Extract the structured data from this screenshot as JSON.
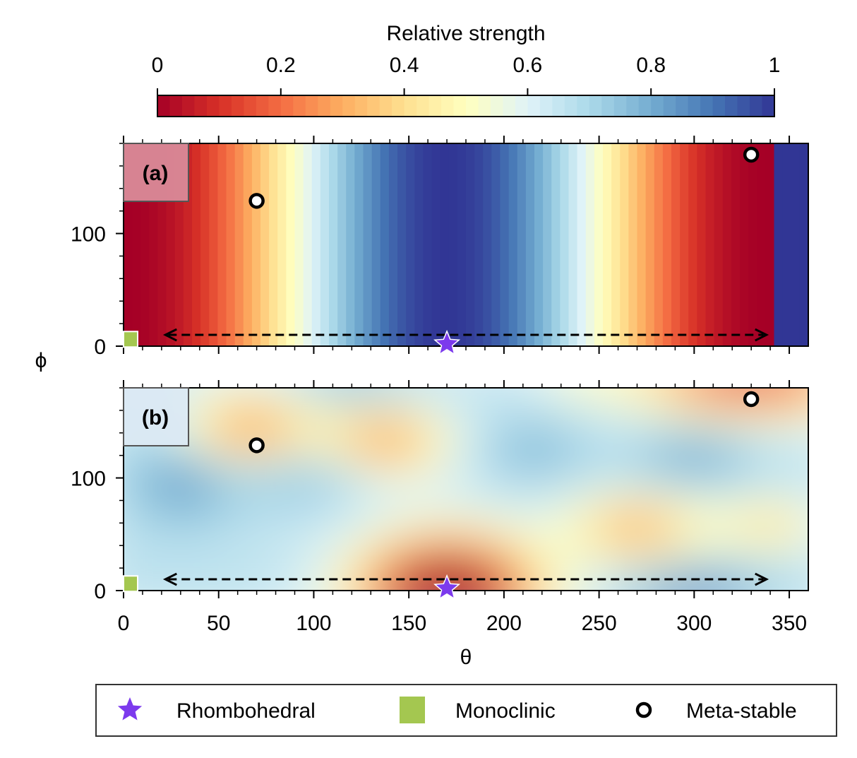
{
  "chart_data": {
    "type": "heatmap",
    "colorbar": {
      "label": "Relative strength",
      "range": [
        0,
        1
      ],
      "ticks": [
        0,
        0.2,
        0.4,
        0.6,
        0.8,
        1
      ],
      "tick_labels": [
        "0",
        "0.2",
        "0.4",
        "0.6",
        "0.8",
        "1"
      ],
      "colormap": "RdYlBu",
      "placement": "top"
    },
    "x_axis": {
      "label": "θ",
      "range": [
        0,
        360
      ],
      "ticks": [
        0,
        50,
        100,
        150,
        200,
        250,
        300,
        350
      ],
      "tick_labels": [
        "0",
        "50",
        "100",
        "150",
        "200",
        "250",
        "300",
        "350"
      ]
    },
    "y_axis": {
      "label": "ϕ",
      "range": [
        0,
        180
      ],
      "ticks": [
        0,
        100
      ],
      "tick_labels": [
        "0",
        "100"
      ]
    },
    "panels": [
      {
        "id": "a",
        "label": "(a)",
        "label_bg": "#d98a98",
        "field_note": "varies with θ only; minimum near θ=0 and θ=360, maximum near θ=170"
      },
      {
        "id": "b",
        "label": "(b)",
        "label_bg": "#dbe9f3",
        "field_note": "smooth 2D field; low (red) near θ=170, ϕ=0; yellow near θ=65,ϕ=135 and θ=135,ϕ=130 and θ=330,ϕ=175"
      }
    ],
    "markers": {
      "rhombohedral": {
        "theta": 170,
        "phi": 2,
        "color": "#7c3aed",
        "shape": "star"
      },
      "monoclinic": {
        "theta": 3,
        "phi": 5,
        "color": "#a4c750",
        "shape": "square"
      },
      "meta_stable": [
        {
          "theta": 70,
          "phi": 129
        },
        {
          "theta": 330,
          "phi": 170
        }
      ]
    },
    "arrow": {
      "theta_start": 22,
      "theta_end": 338,
      "phi": 10,
      "style": "dashed",
      "direction": "both"
    },
    "legend": {
      "placement": "bottom",
      "entries": [
        {
          "key": "rhombohedral",
          "label": "Rhombohedral",
          "color": "#7c3aed"
        },
        {
          "key": "monoclinic",
          "label": "Monoclinic",
          "color": "#a4c750"
        },
        {
          "key": "meta_stable",
          "label": "Meta-stable",
          "color": "#000000"
        }
      ]
    }
  }
}
